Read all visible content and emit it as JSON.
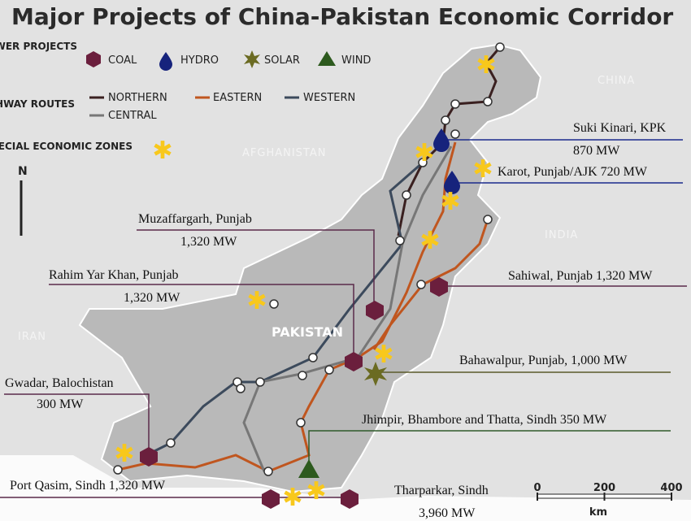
{
  "title": "Major Projects of China-Pakistan Economic Corridor",
  "legend": {
    "power_heading": "POWER PROJECTS",
    "power": [
      "COAL",
      "HYDRO",
      "SOLAR",
      "WIND"
    ],
    "highway_heading": "HIGHWAY ROUTES",
    "highways": [
      "NORTHERN",
      "EASTERN",
      "WESTERN",
      "CENTRAL"
    ],
    "sez_heading": "SPECIAL ECONOMIC ZONES"
  },
  "compass": "N",
  "countries": [
    "CHINA",
    "AFGHANISTAN",
    "INDIA",
    "IRAN",
    "PAKISTAN"
  ],
  "projects": [
    {
      "name": "Suki Kinari, KPK",
      "capacity": "870 MW"
    },
    {
      "name": "Karot, Punjab/AJK 720 MW"
    },
    {
      "name": "Muzaffargarh, Punjab",
      "capacity": "1,320 MW"
    },
    {
      "name": "Rahim Yar Khan, Punjab",
      "capacity": "1,320 MW"
    },
    {
      "name": "Sahiwal, Punjab 1,320 MW"
    },
    {
      "name": "Bahawalpur, Punjab, 1,000 MW"
    },
    {
      "name": "Gwadar, Balochistan",
      "capacity": "300 MW"
    },
    {
      "name": "Jhimpir, Bhambore and Thatta, Sindh 350 MW"
    },
    {
      "name": "Port Qasim, Sindh 1,320 MW"
    },
    {
      "name": "Tharparkar, Sindh",
      "capacity": "3,960 MW"
    }
  ],
  "scale": {
    "ticks": [
      0,
      200,
      400
    ],
    "unit": "km"
  }
}
